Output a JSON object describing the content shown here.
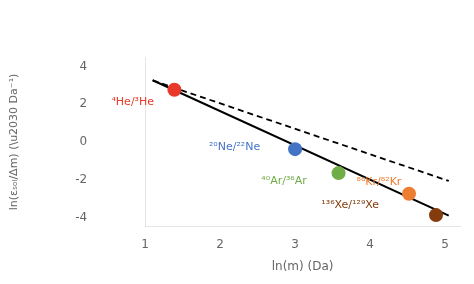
{
  "chart_data": {
    "type": "scatter",
    "xlabel": "ln(m) (Da)",
    "ylabel": "ln(εₛₒₗ/Δm) (\\u2030 Da⁻¹)",
    "xlim": [
      1.0,
      5.2
    ],
    "ylim": [
      -4.5,
      4.5
    ],
    "xticks": [
      1,
      2,
      3,
      4,
      5
    ],
    "yticks": [
      -4,
      -2,
      0,
      2,
      4
    ],
    "grid": false,
    "series": [
      {
        "type": "line",
        "line_style": "solid",
        "color": "#000000",
        "x": [
          1.1,
          5.05
        ],
        "values": [
          3.278,
          -3.911
        ]
      },
      {
        "type": "line",
        "line_style": "dashed",
        "color": "#000000",
        "x": [
          1.1,
          5.05
        ],
        "values": [
          3.265,
          -2.0675
        ]
      },
      {
        "type": "scatter",
        "x": [
          1.39,
          3.0,
          3.58,
          4.52,
          4.88
        ],
        "values": [
          2.77,
          -0.38,
          -1.65,
          -2.75,
          -3.88
        ],
        "colors": [
          "#e8392a",
          "#4472c4",
          "#70ad47",
          "#ed7d31",
          "#843c0c"
        ]
      }
    ],
    "annotations": [
      {
        "text": "⁴He/³He",
        "x": 0.55,
        "y": 2.1,
        "color": "#e8392a"
      },
      {
        "text": "²⁰Ne/²²Ne",
        "x": 1.85,
        "y": -0.25,
        "color": "#4472c4"
      },
      {
        "text": "⁴⁰Ar/³⁶Ar",
        "x": 2.55,
        "y": -2.1,
        "color": "#70ad47"
      },
      {
        "text": "⁸⁶Kr/⁸²Kr",
        "x": 3.82,
        "y": -2.15,
        "color": "#ed7d31"
      },
      {
        "text": "¹³⁶Xe/¹²⁹Xe",
        "x": 3.35,
        "y": -3.35,
        "color": "#843c0c"
      }
    ]
  }
}
